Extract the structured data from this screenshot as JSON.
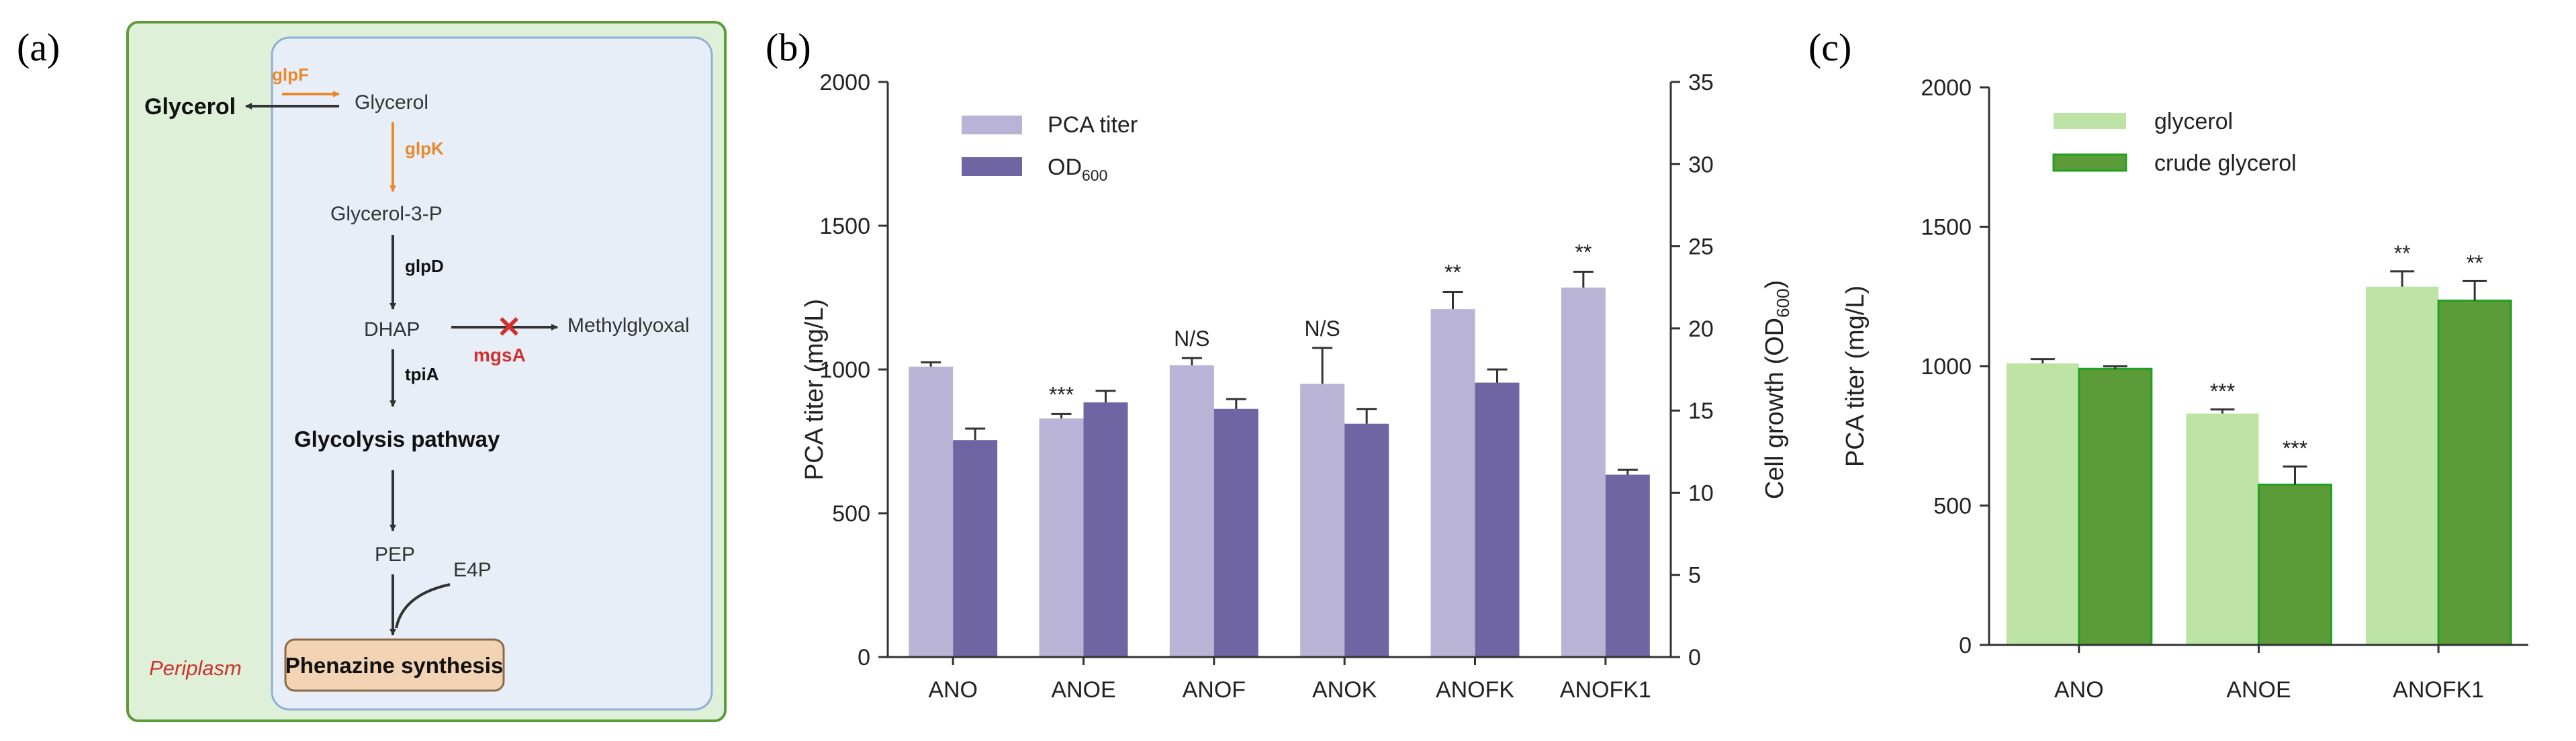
{
  "panel_labels": [
    "(a)",
    "(b)",
    "(c)"
  ],
  "pathway": {
    "glycerol_outside": "Glycerol",
    "glycerol_inside": "Glycerol",
    "glpF": "glpF",
    "glpK": "glpK",
    "glycerol3p": "Glycerol-3-P",
    "glpD": "glpD",
    "dhap": "DHAP",
    "mgsA": "mgsA",
    "methylglyoxal": "Methylglyoxal",
    "tpiA": "tpiA",
    "glycolysis": "Glycolysis pathway",
    "pep": "PEP",
    "e4p": "E4P",
    "phenazine": "Phenazine synthesis",
    "periplasm": "Periplasm",
    "knockout_mark": "✕"
  },
  "colors": {
    "pca_b": "#b9b4d6",
    "od_b": "#6f65a3",
    "glycerol_c": "#bde3a5",
    "crude_c": "#5c9c38",
    "crude_c_edge": "#21a021",
    "gene_orange": "#e8892b",
    "knockout_red": "#d0312d",
    "periplasm_green": "#dff0d8",
    "cell_blue": "#e8eef8",
    "phenazine_box": "#f2d3b3"
  },
  "chart_data": [
    {
      "id": "b",
      "type": "bar",
      "categories": [
        "ANO",
        "ANOE",
        "ANOF",
        "ANOK",
        "ANOFK",
        "ANOFK1"
      ],
      "series": [
        {
          "name": "PCA titer",
          "axis": "left",
          "values": [
            1010,
            830,
            1015,
            950,
            1210,
            1285
          ],
          "errors": [
            15,
            15,
            25,
            125,
            60,
            55
          ],
          "significance": [
            "",
            "***",
            "N/S",
            "N/S",
            "**",
            "**"
          ]
        },
        {
          "name": "OD600",
          "axis": "right",
          "values": [
            13.2,
            15.5,
            15.1,
            14.2,
            16.7,
            11.1
          ],
          "errors": [
            0.7,
            0.7,
            0.6,
            0.9,
            0.8,
            0.3
          ]
        }
      ],
      "legend": [
        {
          "label": "PCA titer",
          "sub": ""
        },
        {
          "label": "OD",
          "sub": "600"
        }
      ],
      "legend_position": "top-left",
      "ylabel": "PCA titer (mg/L)",
      "y2label": {
        "main": "Cell growth (OD",
        "sub": "600",
        "tail": ")"
      },
      "ylim": [
        0,
        2000
      ],
      "y2lim": [
        0,
        35
      ],
      "yticks": [
        "0",
        "500",
        "1000",
        "1500",
        "2000"
      ],
      "y2ticks": [
        "0",
        "5",
        "10",
        "15",
        "20",
        "25",
        "30",
        "35"
      ]
    },
    {
      "id": "c",
      "type": "bar",
      "categories": [
        "ANO",
        "ANOE",
        "ANOFK1"
      ],
      "series": [
        {
          "name": "glycerol",
          "values": [
            1010,
            830,
            1285
          ],
          "errors": [
            15,
            15,
            55
          ],
          "significance": [
            "",
            "***",
            "**"
          ]
        },
        {
          "name": "crude glycerol",
          "values": [
            990,
            575,
            1235
          ],
          "errors": [
            10,
            65,
            70
          ],
          "significance": [
            "",
            "***",
            "**"
          ]
        }
      ],
      "legend": [
        {
          "label": "glycerol"
        },
        {
          "label": "crude glycerol"
        }
      ],
      "legend_position": "top-left",
      "ylabel": "PCA titer (mg/L)",
      "ylim": [
        0,
        2000
      ],
      "yticks": [
        "0",
        "500",
        "1000",
        "1500",
        "2000"
      ]
    }
  ]
}
